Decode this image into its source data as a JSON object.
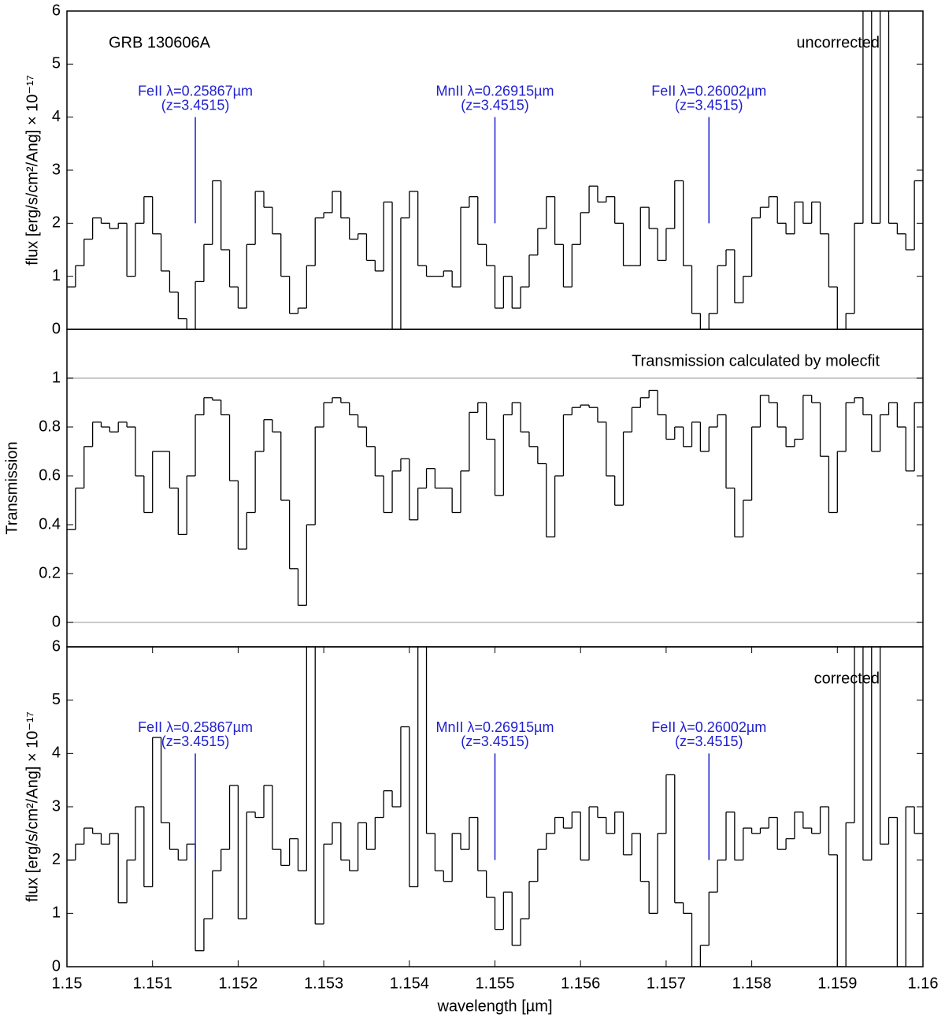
{
  "chart_data": [
    {
      "type": "step",
      "color": "#000000",
      "ylabel": "flux [erg/s/cm²/Ang] × 10⁻¹⁷",
      "texts": {
        "left": "GRB 130606A",
        "right": "uncorrected"
      },
      "xlim": [
        1.15,
        1.16
      ],
      "ylim": [
        0,
        6
      ],
      "yticks": [
        0,
        1,
        2,
        3,
        4,
        5,
        6
      ],
      "annotations": [
        {
          "text": "FeII λ=0.25867µm",
          "sub": "(z=3.4515)",
          "x": 1.1515,
          "ymin": 2,
          "ymax": 4,
          "color": "#1f1fd0"
        },
        {
          "text": "MnII λ=0.26915µm",
          "sub": "(z=3.4515)",
          "x": 1.155,
          "ymin": 2,
          "ymax": 4,
          "color": "#1f1fd0"
        },
        {
          "text": "FeII λ=0.26002µm",
          "sub": "(z=3.4515)",
          "x": 1.1575,
          "ymin": 2,
          "ymax": 4,
          "color": "#1f1fd0"
        }
      ],
      "x": [
        1.15,
        1.1501,
        1.1502,
        1.1503,
        1.1504,
        1.1505,
        1.1506,
        1.1507,
        1.1508,
        1.1509,
        1.151,
        1.1511,
        1.1512,
        1.1513,
        1.1514,
        1.1515,
        1.1516,
        1.1517,
        1.1518,
        1.1519,
        1.152,
        1.1521,
        1.1522,
        1.1523,
        1.1524,
        1.1525,
        1.1526,
        1.1527,
        1.1528,
        1.1529,
        1.153,
        1.1531,
        1.1532,
        1.1533,
        1.1534,
        1.1535,
        1.1536,
        1.1537,
        1.1538,
        1.1539,
        1.154,
        1.1541,
        1.1542,
        1.1543,
        1.1544,
        1.1545,
        1.1546,
        1.1547,
        1.1548,
        1.1549,
        1.155,
        1.1551,
        1.1552,
        1.1553,
        1.1554,
        1.1555,
        1.1556,
        1.1557,
        1.1558,
        1.1559,
        1.156,
        1.1561,
        1.1562,
        1.1563,
        1.1564,
        1.1565,
        1.1566,
        1.1567,
        1.1568,
        1.1569,
        1.157,
        1.1571,
        1.1572,
        1.1573,
        1.1574,
        1.1575,
        1.1576,
        1.1577,
        1.1578,
        1.1579,
        1.158,
        1.1581,
        1.1582,
        1.1583,
        1.1584,
        1.1585,
        1.1586,
        1.1587,
        1.1588,
        1.1589,
        1.159,
        1.1591,
        1.1592,
        1.1593,
        1.1594,
        1.1595,
        1.1596,
        1.1597,
        1.1598,
        1.1599
      ],
      "values": [
        0.8,
        1.2,
        1.7,
        2.1,
        2.0,
        1.9,
        2.0,
        1.0,
        2.0,
        2.5,
        1.8,
        1.1,
        0.7,
        0.2,
        0.0,
        0.9,
        1.6,
        2.8,
        1.5,
        0.8,
        0.4,
        1.6,
        2.6,
        2.3,
        1.8,
        1.0,
        0.3,
        0.4,
        1.2,
        2.1,
        2.2,
        2.6,
        2.1,
        1.7,
        1.8,
        1.3,
        1.1,
        2.4,
        0.0,
        2.1,
        2.6,
        1.2,
        1.0,
        1.0,
        1.1,
        0.8,
        2.3,
        2.5,
        1.6,
        1.2,
        0.4,
        1.0,
        0.4,
        0.8,
        1.4,
        1.9,
        2.5,
        1.6,
        0.8,
        1.6,
        2.2,
        2.7,
        2.4,
        2.5,
        2.0,
        1.2,
        1.2,
        2.3,
        1.9,
        1.3,
        1.9,
        2.8,
        1.2,
        0.3,
        0.0,
        0.3,
        1.2,
        1.5,
        0.5,
        1.0,
        2.1,
        2.3,
        2.5,
        2.0,
        1.8,
        2.4,
        2.0,
        2.4,
        1.8,
        0.8,
        0.0,
        0.3,
        2.0,
        8.0,
        2.0,
        8.5,
        2.0,
        1.8,
        1.5,
        2.8
      ]
    },
    {
      "type": "step",
      "color": "#000000",
      "ylabel": "Transmission",
      "texts": {
        "right": "Transmission calculated by molecfit"
      },
      "xlim": [
        1.15,
        1.16
      ],
      "ylim": [
        -0.1,
        1.2
      ],
      "yticks": [
        0,
        0.2,
        0.4,
        0.6,
        0.8,
        1
      ],
      "hlines": [
        0,
        1
      ],
      "hline_color": "#b8b8b8",
      "x": [
        1.15,
        1.1501,
        1.1502,
        1.1503,
        1.1504,
        1.1505,
        1.1506,
        1.1507,
        1.1508,
        1.1509,
        1.151,
        1.1511,
        1.1512,
        1.1513,
        1.1514,
        1.1515,
        1.1516,
        1.1517,
        1.1518,
        1.1519,
        1.152,
        1.1521,
        1.1522,
        1.1523,
        1.1524,
        1.1525,
        1.1526,
        1.1527,
        1.1528,
        1.1529,
        1.153,
        1.1531,
        1.1532,
        1.1533,
        1.1534,
        1.1535,
        1.1536,
        1.1537,
        1.1538,
        1.1539,
        1.154,
        1.1541,
        1.1542,
        1.1543,
        1.1544,
        1.1545,
        1.1546,
        1.1547,
        1.1548,
        1.1549,
        1.155,
        1.1551,
        1.1552,
        1.1553,
        1.1554,
        1.1555,
        1.1556,
        1.1557,
        1.1558,
        1.1559,
        1.156,
        1.1561,
        1.1562,
        1.1563,
        1.1564,
        1.1565,
        1.1566,
        1.1567,
        1.1568,
        1.1569,
        1.157,
        1.1571,
        1.1572,
        1.1573,
        1.1574,
        1.1575,
        1.1576,
        1.1577,
        1.1578,
        1.1579,
        1.158,
        1.1581,
        1.1582,
        1.1583,
        1.1584,
        1.1585,
        1.1586,
        1.1587,
        1.1588,
        1.1589,
        1.159,
        1.1591,
        1.1592,
        1.1593,
        1.1594,
        1.1595,
        1.1596,
        1.1597,
        1.1598,
        1.1599
      ],
      "values": [
        0.38,
        0.55,
        0.72,
        0.82,
        0.8,
        0.78,
        0.82,
        0.8,
        0.6,
        0.45,
        0.7,
        0.7,
        0.55,
        0.36,
        0.6,
        0.85,
        0.92,
        0.91,
        0.85,
        0.58,
        0.3,
        0.45,
        0.7,
        0.83,
        0.78,
        0.5,
        0.22,
        0.07,
        0.4,
        0.8,
        0.9,
        0.92,
        0.9,
        0.85,
        0.8,
        0.72,
        0.6,
        0.45,
        0.62,
        0.67,
        0.42,
        0.55,
        0.63,
        0.55,
        0.55,
        0.45,
        0.62,
        0.86,
        0.9,
        0.75,
        0.52,
        0.85,
        0.9,
        0.78,
        0.72,
        0.65,
        0.35,
        0.6,
        0.85,
        0.88,
        0.89,
        0.88,
        0.82,
        0.6,
        0.48,
        0.78,
        0.88,
        0.92,
        0.95,
        0.85,
        0.75,
        0.8,
        0.72,
        0.82,
        0.7,
        0.8,
        0.85,
        0.55,
        0.35,
        0.5,
        0.8,
        0.93,
        0.9,
        0.8,
        0.72,
        0.75,
        0.93,
        0.9,
        0.68,
        0.45,
        0.7,
        0.9,
        0.92,
        0.85,
        0.7,
        0.85,
        0.9,
        0.8,
        0.62,
        0.9
      ]
    },
    {
      "type": "step",
      "color": "#000000",
      "ylabel": "flux [erg/s/cm²/Ang] × 10⁻¹⁷",
      "xlabel": "wavelength [µm]",
      "texts": {
        "right": "corrected"
      },
      "xlim": [
        1.15,
        1.16
      ],
      "xticks": [
        1.15,
        1.151,
        1.152,
        1.153,
        1.154,
        1.155,
        1.156,
        1.157,
        1.158,
        1.159,
        1.16
      ],
      "ylim": [
        0,
        6
      ],
      "yticks": [
        0,
        1,
        2,
        3,
        4,
        5,
        6
      ],
      "annotations": [
        {
          "text": "FeII λ=0.25867µm",
          "sub": "(z=3.4515)",
          "x": 1.1515,
          "ymin": 2,
          "ymax": 4,
          "color": "#1f1fd0"
        },
        {
          "text": "MnII λ=0.26915µm",
          "sub": "(z=3.4515)",
          "x": 1.155,
          "ymin": 2,
          "ymax": 4,
          "color": "#1f1fd0"
        },
        {
          "text": "FeII λ=0.26002µm",
          "sub": "(z=3.4515)",
          "x": 1.1575,
          "ymin": 2,
          "ymax": 4,
          "color": "#1f1fd0"
        }
      ],
      "x": [
        1.15,
        1.1501,
        1.1502,
        1.1503,
        1.1504,
        1.1505,
        1.1506,
        1.1507,
        1.1508,
        1.1509,
        1.151,
        1.1511,
        1.1512,
        1.1513,
        1.1514,
        1.1515,
        1.1516,
        1.1517,
        1.1518,
        1.1519,
        1.152,
        1.1521,
        1.1522,
        1.1523,
        1.1524,
        1.1525,
        1.1526,
        1.1527,
        1.1528,
        1.1529,
        1.153,
        1.1531,
        1.1532,
        1.1533,
        1.1534,
        1.1535,
        1.1536,
        1.1537,
        1.1538,
        1.1539,
        1.154,
        1.1541,
        1.1542,
        1.1543,
        1.1544,
        1.1545,
        1.1546,
        1.1547,
        1.1548,
        1.1549,
        1.155,
        1.1551,
        1.1552,
        1.1553,
        1.1554,
        1.1555,
        1.1556,
        1.1557,
        1.1558,
        1.1559,
        1.156,
        1.1561,
        1.1562,
        1.1563,
        1.1564,
        1.1565,
        1.1566,
        1.1567,
        1.1568,
        1.1569,
        1.157,
        1.1571,
        1.1572,
        1.1573,
        1.1574,
        1.1575,
        1.1576,
        1.1577,
        1.1578,
        1.1579,
        1.158,
        1.1581,
        1.1582,
        1.1583,
        1.1584,
        1.1585,
        1.1586,
        1.1587,
        1.1588,
        1.1589,
        1.159,
        1.1591,
        1.1592,
        1.1593,
        1.1594,
        1.1595,
        1.1596,
        1.1597,
        1.1598,
        1.1599
      ],
      "values": [
        2.0,
        2.3,
        2.6,
        2.5,
        2.3,
        2.5,
        1.2,
        2.0,
        3.0,
        1.5,
        4.3,
        2.7,
        2.2,
        2.0,
        2.3,
        0.3,
        0.9,
        1.8,
        2.2,
        3.4,
        0.9,
        2.9,
        2.8,
        3.4,
        2.2,
        1.9,
        2.4,
        1.8,
        9.0,
        0.8,
        2.3,
        2.7,
        2.0,
        1.8,
        2.7,
        2.2,
        2.8,
        3.3,
        3.0,
        4.5,
        1.5,
        8.0,
        2.5,
        1.8,
        1.6,
        2.5,
        2.2,
        2.8,
        1.8,
        1.3,
        0.7,
        1.4,
        0.4,
        0.9,
        1.6,
        2.2,
        2.5,
        2.8,
        2.6,
        2.9,
        2.0,
        3.0,
        2.8,
        2.5,
        2.9,
        2.1,
        2.5,
        1.6,
        1.0,
        2.5,
        3.6,
        1.2,
        1.0,
        0.0,
        0.4,
        1.4,
        2.0,
        2.9,
        2.0,
        2.6,
        2.5,
        2.6,
        2.8,
        2.2,
        2.4,
        2.9,
        2.6,
        2.5,
        3.0,
        2.1,
        0.0,
        2.7,
        7.0,
        2.0,
        7.0,
        2.3,
        2.8,
        0.0,
        3.0,
        2.5
      ]
    }
  ]
}
